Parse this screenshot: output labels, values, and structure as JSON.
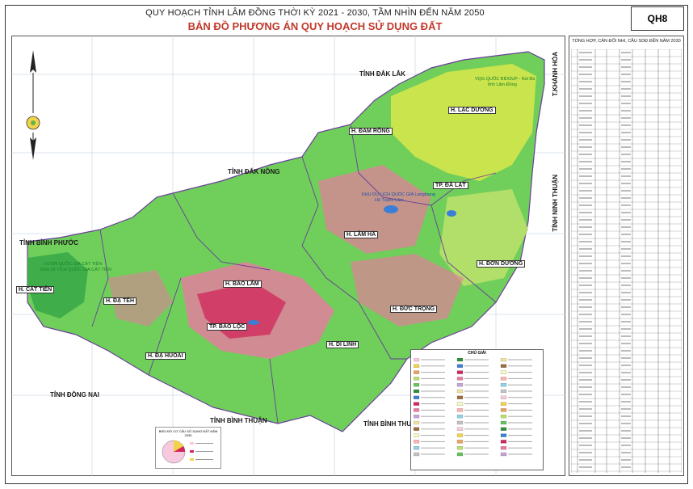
{
  "header": {
    "line1": "QUY HOẠCH TỈNH LÂM ĐỒNG THỜI KỲ 2021 - 2030, TẦM NHÌN ĐẾN NĂM 2050",
    "line2": "BẢN ĐỒ PHƯƠNG ÁN QUY HOẠCH SỬ DỤNG ĐẤT",
    "code": "QH8"
  },
  "labels": {
    "dak_lak": "TỈNH ĐẮK LẮK",
    "khanh_hoa": "T.KHÁNH HÒA",
    "ninh_thuan": "TỈNH NINH THUẬN",
    "dak_nong": "TỈNH ĐẮK NÔNG",
    "binh_phuoc": "TỈNH BÌNH PHƯỚC",
    "dong_nai": "TỈNH ĐỒNG NAI",
    "binh_thuan_1": "TỈNH BÌNH THUẬN",
    "binh_thuan_2": "TỈNH BÌNH THUẬN",
    "lac_duong": "H. LẠC DƯƠNG",
    "dam_rong": "H. ĐAM RÔNG",
    "da_lat": "TP. ĐÀ LẠT",
    "lam_ha": "H. LÂM HÀ",
    "don_duong": "H. ĐƠN DƯƠNG",
    "duc_trong": "H. ĐỨC TRỌNG",
    "bao_lam": "H. BẢO LÂM",
    "bao_loc": "TP. BẢO LỘC",
    "di_linh": "H. DI LINH",
    "da_huoai": "H. ĐẠ HUOAI",
    "da_teh": "H. ĐẠ TẺH",
    "cat_tien": "H. CÁT TIÊN",
    "bidoup_1": "VQG QUỐC BIDOUP - Núi Bà",
    "bidoup_2": "tỉnh Lâm Đồng",
    "tuyen_lam": "KHU DU LỊCH QUỐC GIA Langbiang",
    "tuyen_lam_2": "Hồ Tuyền Lâm",
    "cat_tien_np_1": "VƯỜN QUỐC GIA CÁT TIÊN",
    "cat_tien_np_2": "KHU DI TÍCH QUỐC GIA CÁT TIÊN"
  },
  "table": {
    "title": "TỔNG HỢP, CÂN ĐỐI NHI, CẦU SDĐ ĐẾN NĂM 2030"
  },
  "legend": {
    "title": "CHÚ GIẢI"
  },
  "pie": {
    "title": "BIỂU ĐỒ CƠ CẤU SỬ DỤNG ĐẤT NĂM 2030"
  },
  "colors": {
    "forest": "#5fc45a",
    "light_forest": "#9edc6a",
    "agri": "#f0a8c8",
    "dense_red": "#d2265a",
    "yellow_green": "#d9e84a",
    "boundary": "#6a3d9a",
    "water": "#3a7fd5",
    "outside": "#ffffff"
  }
}
